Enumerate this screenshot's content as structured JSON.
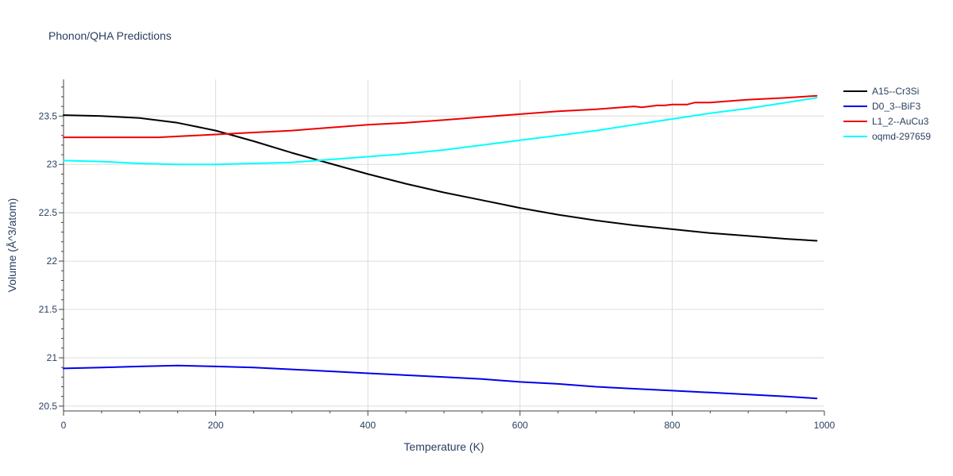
{
  "chart_data": {
    "type": "line",
    "title": "Phonon/QHA Predictions",
    "xlabel": "Temperature (K)",
    "ylabel": "Volume (Å^3/atom)",
    "xlim": [
      0,
      1000
    ],
    "ylim": [
      20.45,
      23.88
    ],
    "x_ticks": [
      0,
      200,
      400,
      600,
      800,
      1000
    ],
    "x_tick_labels": [
      "0",
      "200",
      "400",
      "600",
      "800",
      "1000"
    ],
    "y_ticks": [
      20.5,
      21,
      21.5,
      22,
      22.5,
      23,
      23.5
    ],
    "y_tick_labels": [
      "20.5",
      "21",
      "21.5",
      "22",
      "22.5",
      "23",
      "23.5"
    ],
    "grid": true,
    "legend_position": "top-right",
    "series": [
      {
        "name": "A15--Cr3Si",
        "color": "#000000",
        "x": [
          0,
          50,
          100,
          150,
          200,
          250,
          300,
          350,
          400,
          450,
          500,
          550,
          600,
          650,
          700,
          750,
          800,
          850,
          900,
          950,
          990
        ],
        "y": [
          23.51,
          23.5,
          23.48,
          23.43,
          23.35,
          23.24,
          23.12,
          23.01,
          22.9,
          22.8,
          22.71,
          22.63,
          22.55,
          22.48,
          22.42,
          22.37,
          22.33,
          22.29,
          22.26,
          22.23,
          22.21
        ]
      },
      {
        "name": "D0_3--BiF3",
        "color": "#0000ee",
        "x": [
          0,
          50,
          100,
          150,
          200,
          250,
          300,
          350,
          400,
          450,
          500,
          550,
          600,
          650,
          700,
          750,
          800,
          850,
          900,
          950,
          990
        ],
        "y": [
          20.89,
          20.9,
          20.91,
          20.92,
          20.91,
          20.9,
          20.88,
          20.86,
          20.84,
          20.82,
          20.8,
          20.78,
          20.75,
          20.73,
          20.7,
          20.68,
          20.66,
          20.64,
          20.62,
          20.6,
          20.58
        ]
      },
      {
        "name": "L1_2--AuCu3",
        "color": "#ee0000",
        "x": [
          0,
          50,
          100,
          125,
          150,
          200,
          250,
          300,
          350,
          400,
          450,
          500,
          550,
          600,
          650,
          700,
          750,
          760,
          770,
          780,
          790,
          800,
          810,
          820,
          830,
          850,
          900,
          950,
          990
        ],
        "y": [
          23.28,
          23.28,
          23.28,
          23.28,
          23.29,
          23.31,
          23.33,
          23.35,
          23.38,
          23.41,
          23.43,
          23.46,
          23.49,
          23.52,
          23.55,
          23.57,
          23.6,
          23.59,
          23.6,
          23.61,
          23.61,
          23.62,
          23.62,
          23.62,
          23.64,
          23.64,
          23.67,
          23.69,
          23.71
        ]
      },
      {
        "name": "oqmd-297659",
        "color": "#00ffff",
        "x": [
          0,
          50,
          100,
          150,
          200,
          250,
          300,
          350,
          400,
          450,
          500,
          550,
          600,
          650,
          700,
          750,
          800,
          850,
          900,
          950,
          990
        ],
        "y": [
          23.04,
          23.03,
          23.01,
          23.0,
          23.0,
          23.01,
          23.02,
          23.05,
          23.08,
          23.11,
          23.15,
          23.2,
          23.25,
          23.3,
          23.35,
          23.41,
          23.47,
          23.53,
          23.58,
          23.64,
          23.69
        ]
      }
    ]
  }
}
